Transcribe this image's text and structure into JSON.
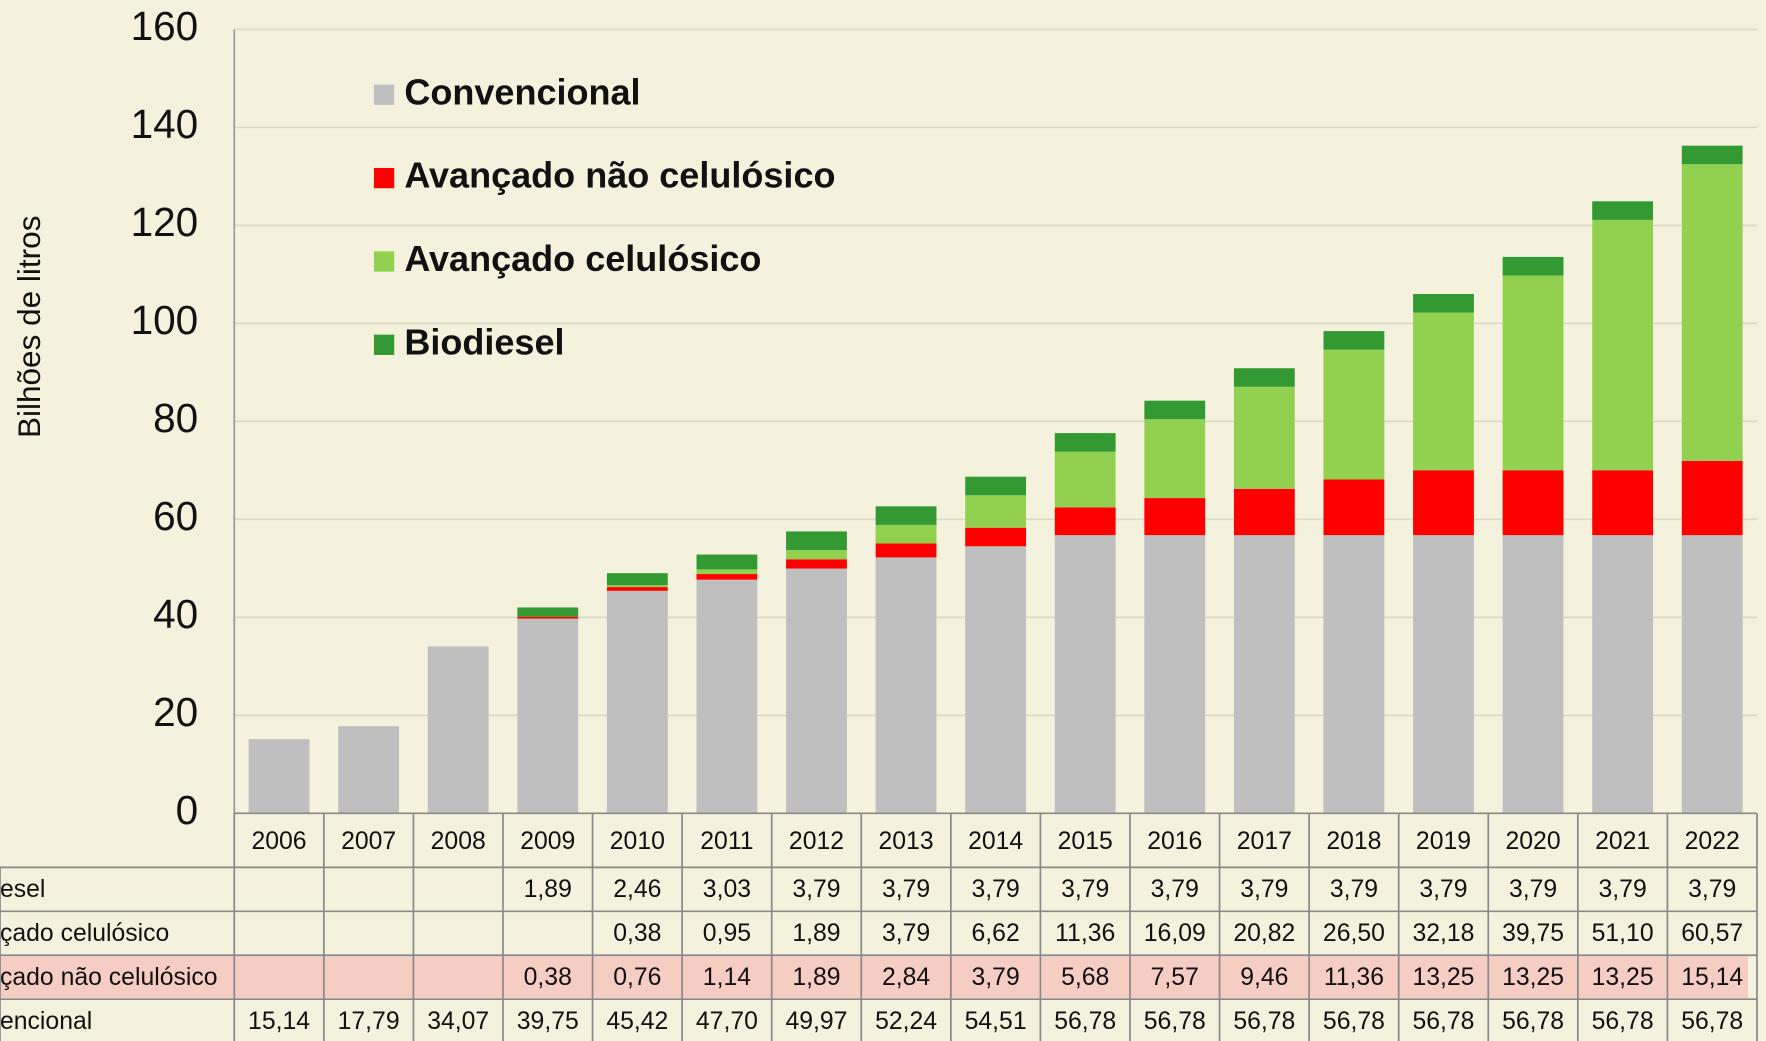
{
  "chart_data": {
    "type": "stacked_bar",
    "y_label": "Bilhões de litros",
    "categories": [
      "2006",
      "2007",
      "2008",
      "2009",
      "2010",
      "2011",
      "2012",
      "2013",
      "2014",
      "2015",
      "2016",
      "2017",
      "2018",
      "2019",
      "2020",
      "2021",
      "2022"
    ],
    "ylim": [
      0,
      160
    ],
    "yticks": [
      0,
      20,
      40,
      60,
      80,
      100,
      120,
      140,
      160
    ],
    "grid": true,
    "legend": "upper left",
    "series": [
      {
        "name": "Convencional",
        "table_label": "encional",
        "color": "#bfbfbf",
        "values": [
          15.14,
          17.79,
          34.07,
          39.75,
          45.42,
          47.7,
          49.97,
          52.24,
          54.51,
          56.78,
          56.78,
          56.78,
          56.78,
          56.78,
          56.78,
          56.78,
          56.78
        ],
        "value_labels": [
          "15,14",
          "17,79",
          "34,07",
          "39,75",
          "45,42",
          "47,70",
          "49,97",
          "52,24",
          "54,51",
          "56,78",
          "56,78",
          "56,78",
          "56,78",
          "56,78",
          "56,78",
          "56,78",
          "56,78"
        ]
      },
      {
        "name": "Avançado não celulósico",
        "table_label": "çado não celulósico",
        "color": "#ff0000",
        "highlight": true,
        "values": [
          null,
          null,
          null,
          0.38,
          0.76,
          1.14,
          1.89,
          2.84,
          3.79,
          5.68,
          7.57,
          9.46,
          11.36,
          13.25,
          13.25,
          13.25,
          15.14
        ],
        "value_labels": [
          null,
          null,
          null,
          "0,38",
          "0,76",
          "1,14",
          "1,89",
          "2,84",
          "3,79",
          "5,68",
          "7,57",
          "9,46",
          "11,36",
          "13,25",
          "13,25",
          "13,25",
          "15,14"
        ]
      },
      {
        "name": "Avançado celulósico",
        "table_label": "çado celulósico",
        "color": "#92d050",
        "values": [
          null,
          null,
          null,
          null,
          0.38,
          0.95,
          1.89,
          3.79,
          6.62,
          11.36,
          16.09,
          20.82,
          26.5,
          32.18,
          39.75,
          51.1,
          60.57
        ],
        "value_labels": [
          null,
          null,
          null,
          null,
          "0,38",
          "0,95",
          "1,89",
          "3,79",
          "6,62",
          "11,36",
          "16,09",
          "20,82",
          "26,50",
          "32,18",
          "39,75",
          "51,10",
          "60,57"
        ]
      },
      {
        "name": "Biodiesel",
        "table_label": "esel",
        "color": "#339933",
        "values": [
          null,
          null,
          null,
          1.89,
          2.46,
          3.03,
          3.79,
          3.79,
          3.79,
          3.79,
          3.79,
          3.79,
          3.79,
          3.79,
          3.79,
          3.79,
          3.79
        ],
        "value_labels": [
          null,
          null,
          null,
          "1,89",
          "2,46",
          "3,03",
          "3,79",
          "3,79",
          "3,79",
          "3,79",
          "3,79",
          "3,79",
          "3,79",
          "3,79",
          "3,79",
          "3,79",
          "3,79"
        ]
      }
    ]
  }
}
